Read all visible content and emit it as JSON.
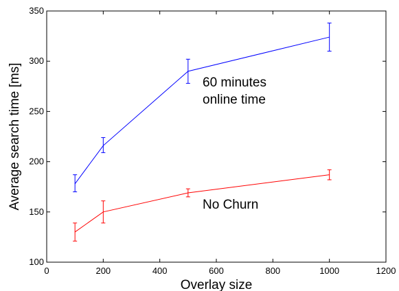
{
  "chart_data": {
    "type": "line",
    "xlabel": "Overlay size",
    "ylabel": "Average search time [ms]",
    "xlim": [
      0,
      1200
    ],
    "ylim": [
      100,
      350
    ],
    "xticks": [
      "0",
      "200",
      "400",
      "600",
      "800",
      "1000",
      "1200"
    ],
    "yticks": [
      "100",
      "150",
      "200",
      "250",
      "300",
      "350"
    ],
    "grid": false,
    "annotations": [
      "60 minutes",
      "online time",
      "No Churn"
    ],
    "series": [
      {
        "color": "#0000ff",
        "x": [
          100,
          200,
          500,
          1000
        ],
        "y": [
          178,
          216,
          290,
          324
        ],
        "err_low": [
          170,
          209,
          278,
          310
        ],
        "err_high": [
          187,
          224,
          302,
          338
        ]
      },
      {
        "color": "#ff0000",
        "x": [
          100,
          200,
          500,
          1000
        ],
        "y": [
          130,
          150,
          169,
          187
        ],
        "err_low": [
          121,
          139,
          165,
          182
        ],
        "err_high": [
          139,
          161,
          173,
          192
        ]
      }
    ]
  }
}
